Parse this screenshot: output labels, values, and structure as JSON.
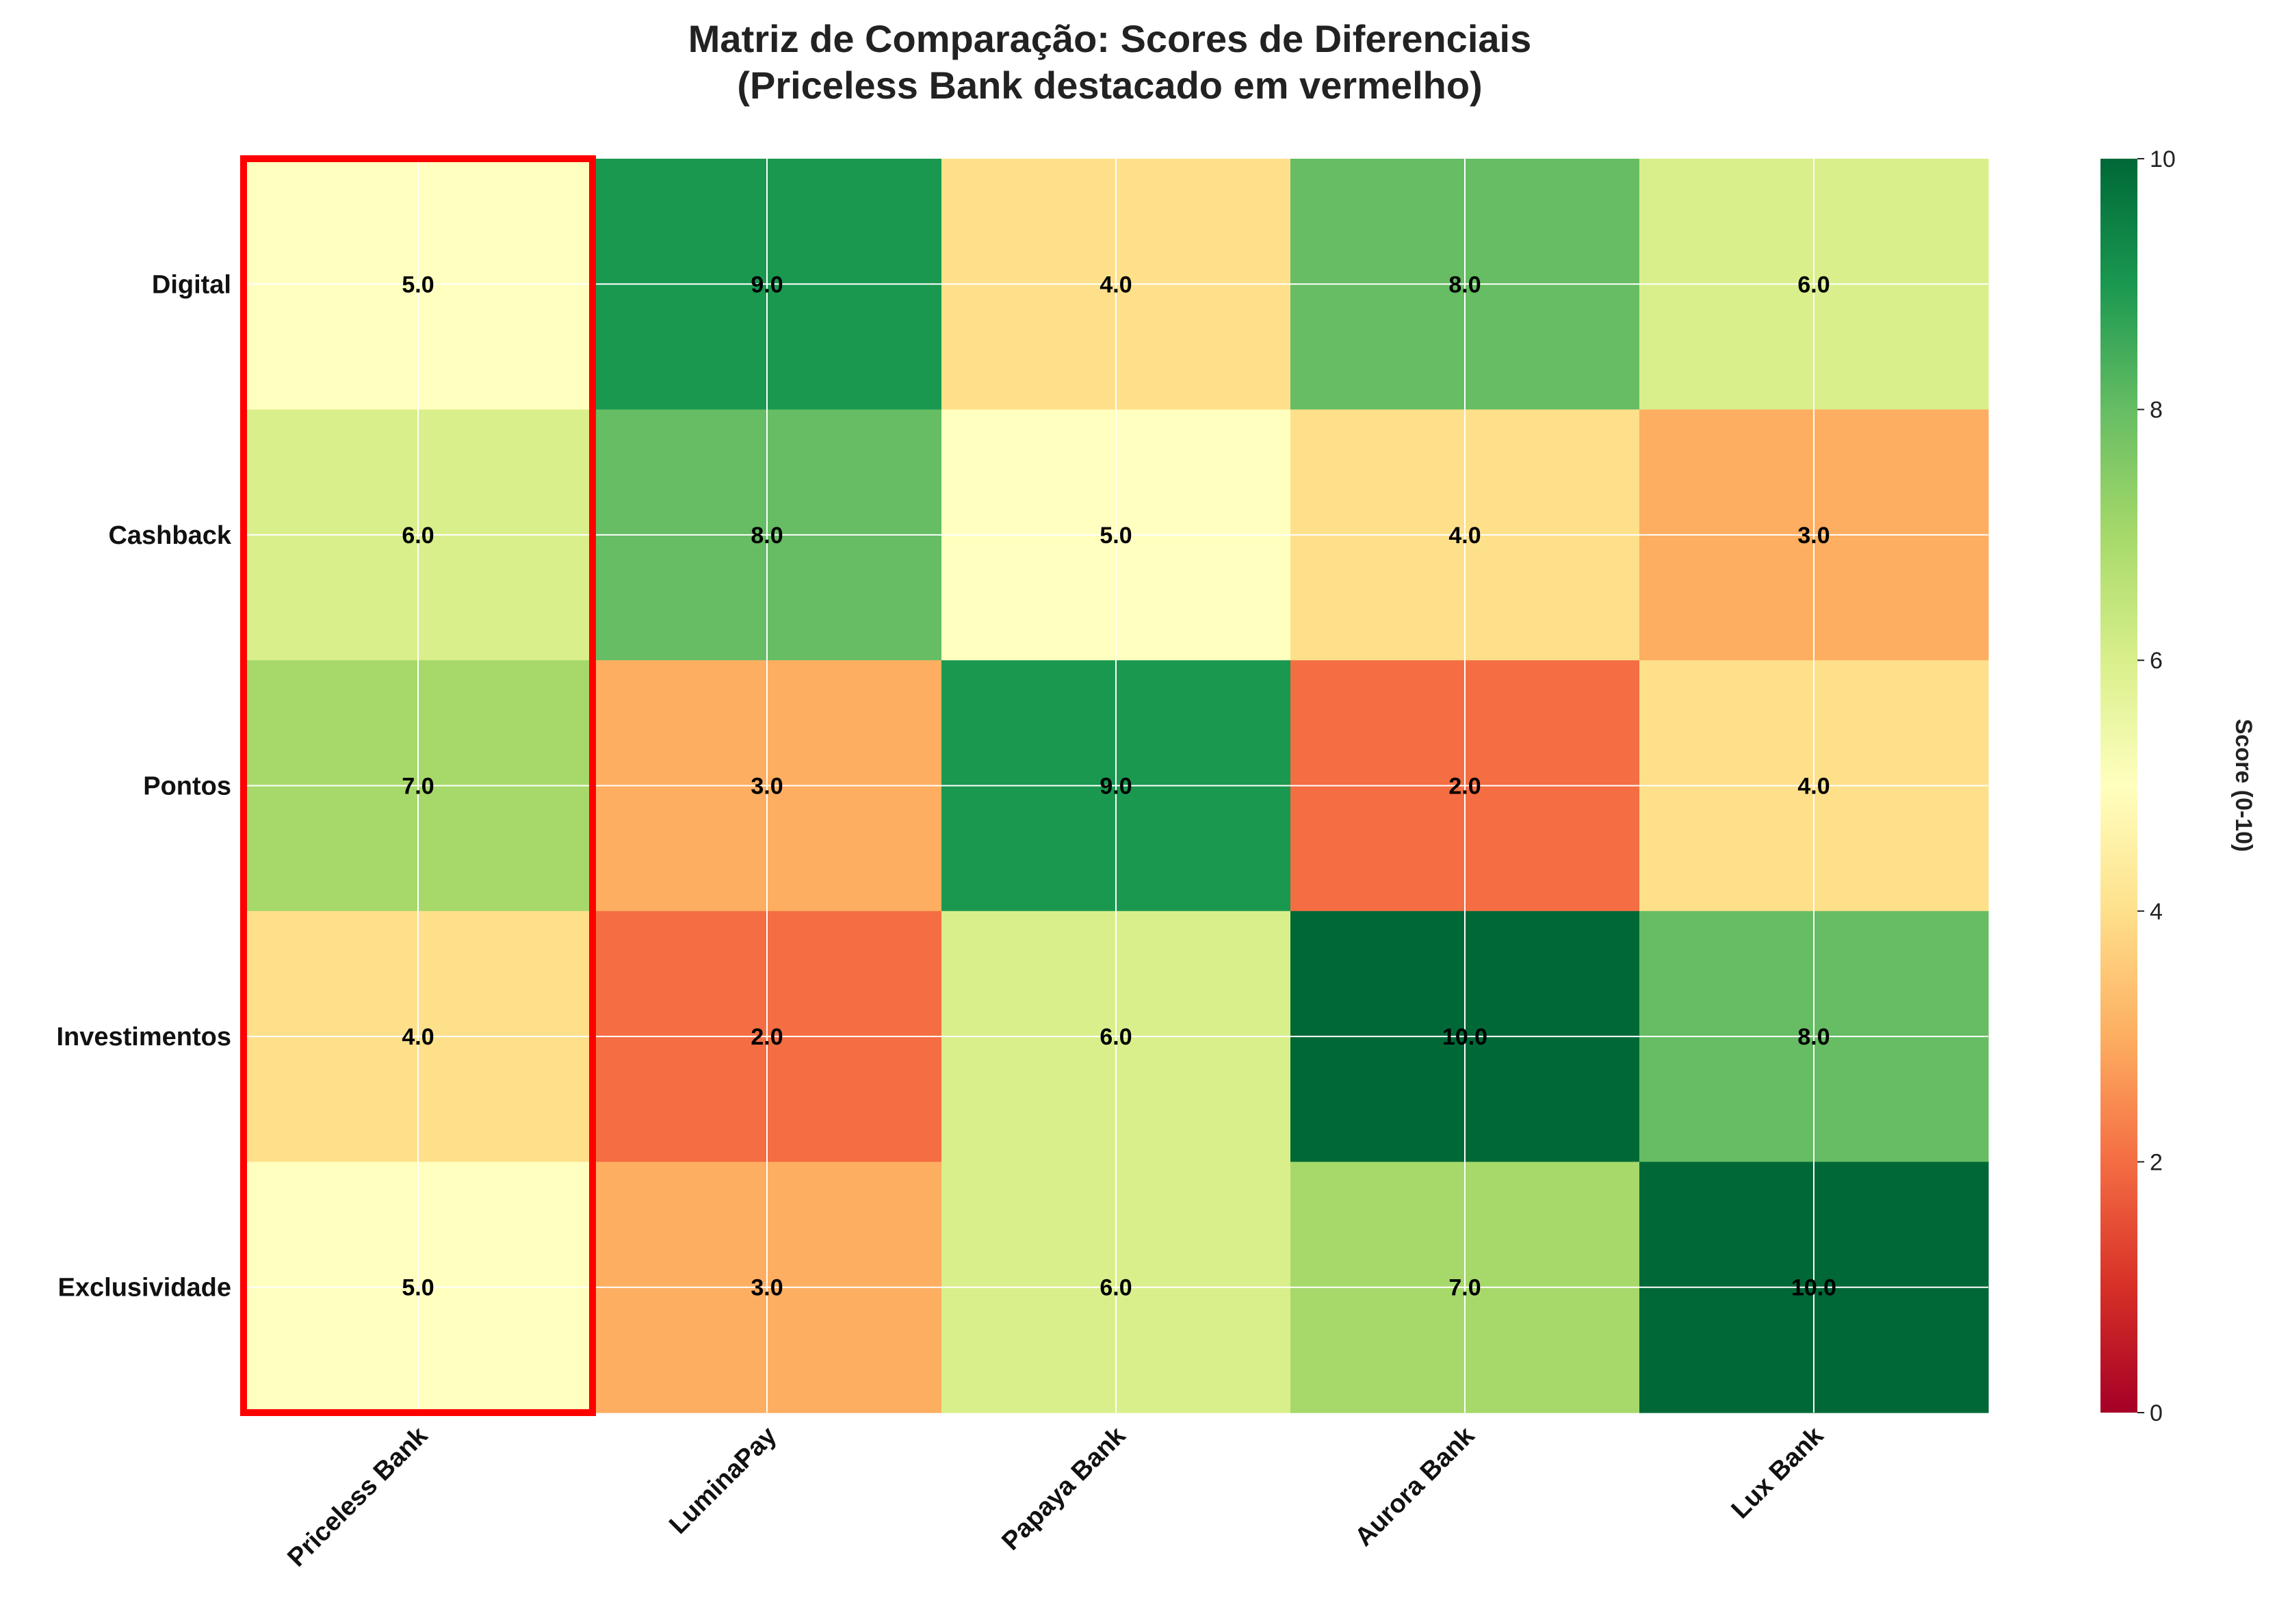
{
  "chart_data": {
    "type": "heatmap",
    "title_line1": "Matriz de Comparação: Scores de Diferenciais",
    "title_line2": "(Priceless Bank destacado em vermelho)",
    "rows": [
      "Digital",
      "Cashback",
      "Pontos",
      "Investimentos",
      "Exclusividade"
    ],
    "columns": [
      "Priceless Bank",
      "LuminaPay",
      "Papaya Bank",
      "Aurora Bank",
      "Lux Bank"
    ],
    "values": [
      [
        5.0,
        9.0,
        4.0,
        8.0,
        6.0
      ],
      [
        6.0,
        8.0,
        5.0,
        4.0,
        3.0
      ],
      [
        7.0,
        3.0,
        9.0,
        2.0,
        4.0
      ],
      [
        4.0,
        2.0,
        6.0,
        10.0,
        8.0
      ],
      [
        5.0,
        3.0,
        6.0,
        7.0,
        10.0
      ]
    ],
    "value_range": [
      0,
      10
    ],
    "colormap": "RdYlGn",
    "highlight_column": "Priceless Bank",
    "highlight_color": "#ff0000",
    "grid": true,
    "colorbar": {
      "label": "Score (0-10)",
      "ticks": [
        "0",
        "2",
        "4",
        "6",
        "8",
        "10"
      ]
    }
  }
}
